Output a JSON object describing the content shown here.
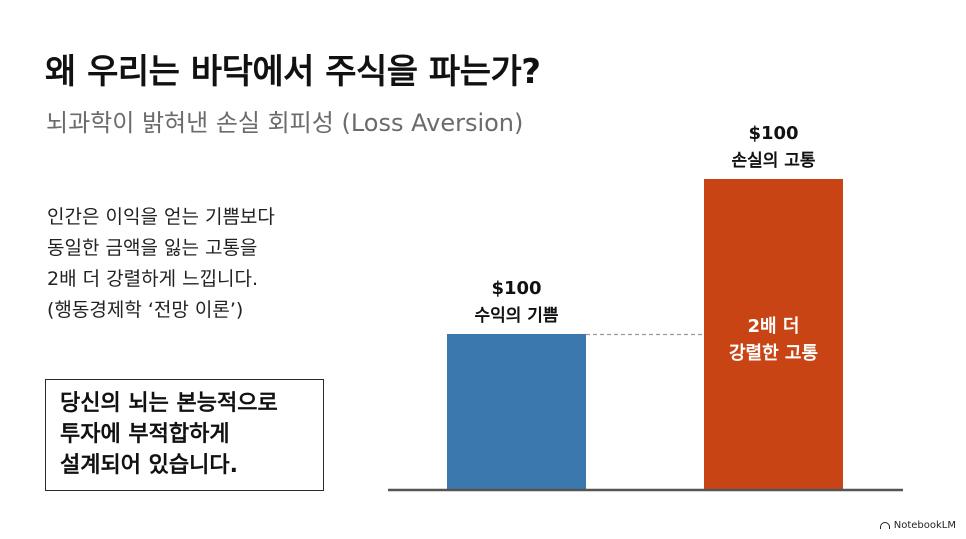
{
  "title": "왜 우리는 바닥에서 주식을 파는가?",
  "subtitle": "뇌과학이 밝혀낸 손실 회피성 (Loss Aversion)",
  "body_lines": [
    "인간은 이익을 얻는 기쁨보다",
    "동일한 금액을 잃는 고통을",
    "2배 더 강렬하게 느낍니다.",
    "(행동경제학 ‘전망 이론’)"
  ],
  "callout_lines": [
    "당신의 뇌는 본능적으로",
    "투자에 부적합하게",
    "설계되어 있습니다."
  ],
  "chart_data": {
    "type": "bar",
    "categories": [
      "수익의 기쁨",
      "손실의 고통"
    ],
    "series": [
      {
        "values": [
          1,
          2
        ],
        "colors": [
          "#3b78ad",
          "#c94415"
        ]
      }
    ],
    "value_labels": [
      "$100",
      "$100"
    ],
    "inner_label": [
      "2배 더",
      "강렬한 고통"
    ],
    "ylim": [
      0,
      2.1
    ],
    "grid": false,
    "legend": "none",
    "reference_line": "dashed line at height of first bar"
  },
  "brand": {
    "icon": "notebooklm-logo-icon",
    "text": "NotebookLM"
  }
}
